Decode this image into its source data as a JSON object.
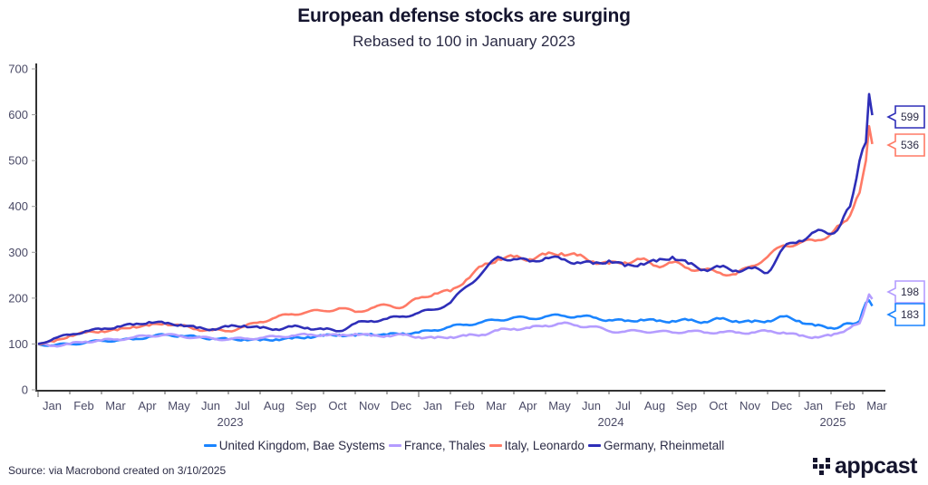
{
  "header": {
    "title": "European defense stocks are surging",
    "subtitle": "Rebased to 100 in January 2023"
  },
  "footer": {
    "source": "Source:  via Macrobond created on 3/10/2025",
    "logo_text": "appcast"
  },
  "chart_data": {
    "type": "line",
    "title": "European defense stocks are surging",
    "subtitle": "Rebased to 100 in January 2023",
    "xlabel": "",
    "ylabel": "",
    "ylim": [
      0,
      700
    ],
    "yticks": [
      0,
      100,
      200,
      300,
      400,
      500,
      600,
      700
    ],
    "xrange_months": [
      0,
      26.3
    ],
    "x_unit": "months since Jan 1, 2023",
    "month_ticks": [
      "Jan",
      "Feb",
      "Mar",
      "Apr",
      "May",
      "Jun",
      "Jul",
      "Aug",
      "Sep",
      "Oct",
      "Nov",
      "Dec",
      "Jan",
      "Feb",
      "Mar",
      "Apr",
      "May",
      "Jun",
      "Jul",
      "Aug",
      "Sep",
      "Oct",
      "Nov",
      "Dec",
      "Jan",
      "Feb",
      "Mar"
    ],
    "year_labels": [
      {
        "label": "2023",
        "month": 6
      },
      {
        "label": "2024",
        "month": 18
      },
      {
        "label": "2025",
        "month": 25
      }
    ],
    "grid": false,
    "legend_position": "bottom",
    "x": [
      0,
      0.5,
      1,
      1.5,
      2,
      2.5,
      3,
      3.5,
      4,
      4.5,
      5,
      5.5,
      6,
      6.5,
      7,
      7.5,
      8,
      8.5,
      9,
      9.5,
      10,
      10.5,
      11,
      11.5,
      12,
      12.5,
      13,
      13.5,
      14,
      14.5,
      15,
      15.5,
      16,
      16.5,
      17,
      17.5,
      18,
      18.5,
      19,
      19.5,
      20,
      20.5,
      21,
      21.5,
      22,
      22.5,
      23,
      23.5,
      24,
      24.5,
      25,
      25.3,
      25.6,
      25.9,
      26.1,
      26.2,
      26.3
    ],
    "series": [
      {
        "name": "United Kingdom, Bae Systems",
        "color": "#1a84ff",
        "end_value": 183,
        "values": [
          100,
          97,
          100,
          103,
          107,
          108,
          110,
          116,
          120,
          118,
          115,
          112,
          110,
          110,
          108,
          110,
          112,
          115,
          118,
          120,
          118,
          122,
          120,
          123,
          125,
          130,
          138,
          142,
          148,
          152,
          158,
          155,
          160,
          162,
          160,
          158,
          152,
          150,
          153,
          150,
          150,
          152,
          148,
          155,
          150,
          148,
          150,
          160,
          150,
          140,
          135,
          138,
          145,
          150,
          190,
          195,
          183
        ]
      },
      {
        "name": "France, Thales",
        "color": "#b49cff",
        "end_value": 198,
        "values": [
          100,
          96,
          100,
          105,
          108,
          110,
          114,
          118,
          120,
          117,
          114,
          112,
          110,
          112,
          113,
          116,
          118,
          120,
          120,
          118,
          122,
          118,
          118,
          120,
          115,
          113,
          115,
          118,
          120,
          130,
          133,
          135,
          140,
          145,
          140,
          138,
          128,
          127,
          128,
          127,
          125,
          128,
          125,
          126,
          125,
          125,
          128,
          125,
          118,
          115,
          118,
          125,
          135,
          145,
          185,
          208,
          198
        ]
      },
      {
        "name": "Italy, Leonardo",
        "color": "#ff7a66",
        "end_value": 536,
        "values": [
          100,
          105,
          118,
          125,
          128,
          130,
          138,
          140,
          145,
          140,
          132,
          130,
          128,
          138,
          148,
          158,
          165,
          170,
          172,
          178,
          170,
          178,
          185,
          180,
          200,
          210,
          215,
          240,
          270,
          285,
          290,
          285,
          295,
          298,
          293,
          280,
          275,
          278,
          285,
          270,
          278,
          265,
          262,
          255,
          252,
          270,
          290,
          315,
          320,
          325,
          340,
          360,
          380,
          430,
          500,
          575,
          536
        ]
      },
      {
        "name": "Germany, Rheinmetall",
        "color": "#2e2eb8",
        "end_value": 599,
        "values": [
          100,
          112,
          120,
          128,
          132,
          138,
          142,
          148,
          145,
          142,
          135,
          132,
          138,
          140,
          135,
          132,
          138,
          135,
          132,
          128,
          145,
          150,
          155,
          160,
          168,
          175,
          190,
          225,
          255,
          290,
          285,
          280,
          288,
          285,
          278,
          275,
          282,
          270,
          275,
          280,
          290,
          275,
          262,
          268,
          260,
          265,
          255,
          310,
          325,
          345,
          340,
          360,
          400,
          500,
          540,
          645,
          599
        ]
      }
    ]
  }
}
